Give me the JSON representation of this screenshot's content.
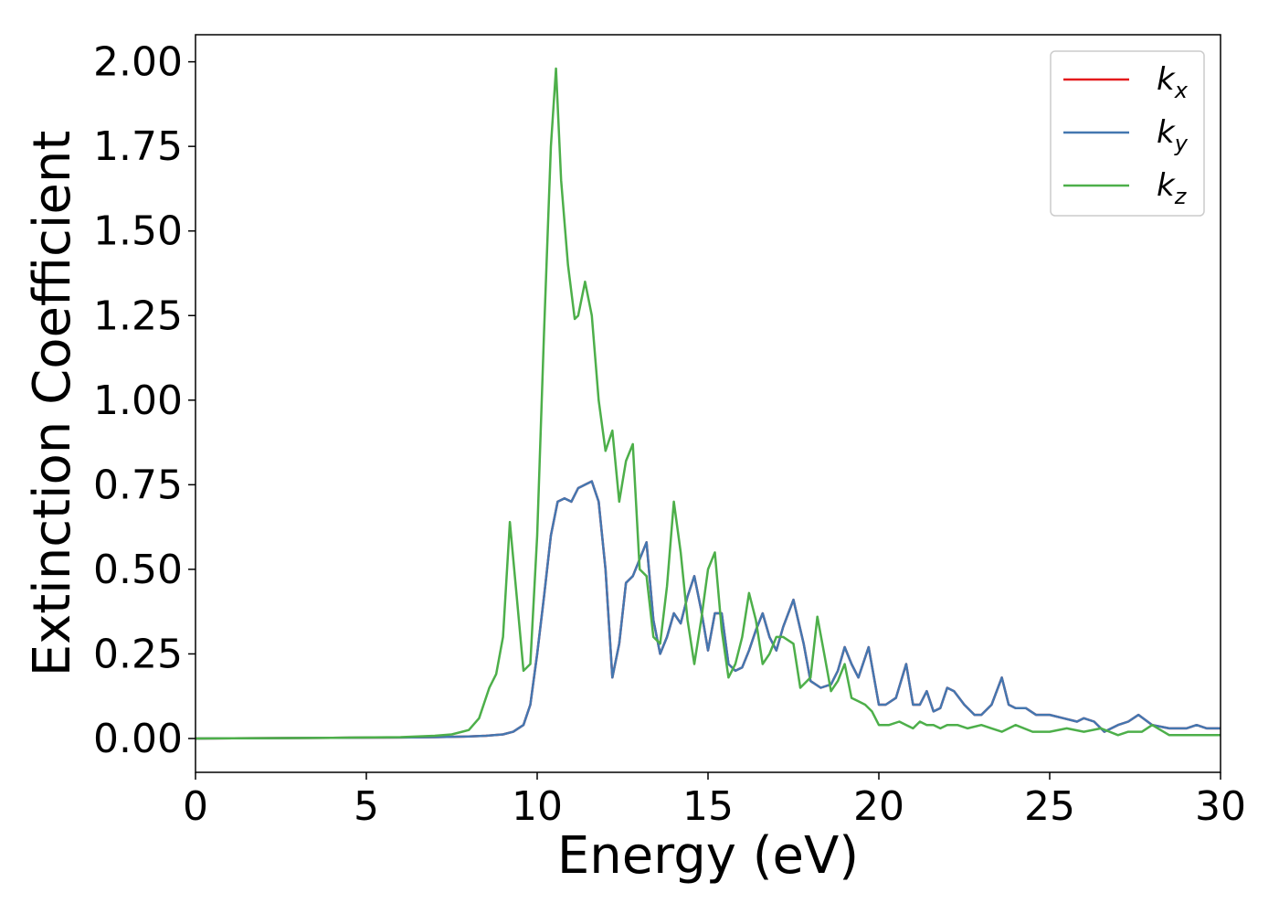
{
  "chart_data": {
    "type": "line",
    "xlabel": "Energy (eV)",
    "ylabel": "Extinction Coefficient",
    "xlim": [
      0,
      30
    ],
    "ylim": [
      -0.1,
      2.08
    ],
    "x_ticks": [
      0,
      5,
      10,
      15,
      20,
      25,
      30
    ],
    "x_tick_labels": [
      "0",
      "5",
      "10",
      "15",
      "20",
      "25",
      "30"
    ],
    "y_ticks": [
      0,
      0.25,
      0.5,
      0.75,
      1.0,
      1.25,
      1.5,
      1.75,
      2.0
    ],
    "y_tick_labels": [
      "0.00",
      "0.25",
      "0.50",
      "0.75",
      "1.00",
      "1.25",
      "1.50",
      "1.75",
      "2.00"
    ],
    "grid": false,
    "legend_position": "top-right",
    "series": [
      {
        "name": "kx",
        "label_main": "k",
        "label_sub": "x",
        "color": "#e41a1c",
        "x": [
          0,
          2,
          4,
          6,
          7,
          8,
          8.5,
          9,
          9.3,
          9.6,
          9.8,
          10,
          10.2,
          10.4,
          10.6,
          10.8,
          11,
          11.2,
          11.4,
          11.6,
          11.8,
          12,
          12.2,
          12.4,
          12.6,
          12.8,
          13,
          13.2,
          13.4,
          13.6,
          13.8,
          14,
          14.2,
          14.4,
          14.6,
          14.8,
          15,
          15.2,
          15.4,
          15.6,
          15.8,
          16,
          16.2,
          16.4,
          16.6,
          16.8,
          17,
          17.2,
          17.5,
          17.8,
          18,
          18.3,
          18.6,
          18.8,
          19,
          19.2,
          19.4,
          19.7,
          20,
          20.2,
          20.5,
          20.8,
          21,
          21.2,
          21.4,
          21.6,
          21.8,
          22,
          22.2,
          22.5,
          22.8,
          23,
          23.3,
          23.6,
          23.8,
          24,
          24.3,
          24.6,
          25,
          25.4,
          25.8,
          26,
          26.3,
          26.6,
          27,
          27.3,
          27.6,
          28,
          28.5,
          29,
          29.3,
          29.6,
          30
        ],
        "y": [
          0,
          0.001,
          0.002,
          0.003,
          0.004,
          0.006,
          0.008,
          0.012,
          0.02,
          0.04,
          0.1,
          0.25,
          0.42,
          0.6,
          0.7,
          0.71,
          0.7,
          0.74,
          0.75,
          0.76,
          0.7,
          0.5,
          0.18,
          0.28,
          0.46,
          0.48,
          0.53,
          0.58,
          0.35,
          0.25,
          0.3,
          0.37,
          0.34,
          0.42,
          0.48,
          0.38,
          0.26,
          0.37,
          0.37,
          0.22,
          0.2,
          0.21,
          0.26,
          0.32,
          0.37,
          0.3,
          0.26,
          0.33,
          0.41,
          0.28,
          0.17,
          0.15,
          0.16,
          0.2,
          0.27,
          0.22,
          0.18,
          0.27,
          0.1,
          0.1,
          0.12,
          0.22,
          0.1,
          0.1,
          0.14,
          0.08,
          0.09,
          0.15,
          0.14,
          0.1,
          0.07,
          0.07,
          0.1,
          0.18,
          0.1,
          0.09,
          0.09,
          0.07,
          0.07,
          0.06,
          0.05,
          0.06,
          0.05,
          0.02,
          0.04,
          0.05,
          0.07,
          0.04,
          0.03,
          0.03,
          0.04,
          0.03,
          0.03
        ]
      },
      {
        "name": "ky",
        "label_main": "k",
        "label_sub": "y",
        "color": "#4477b0",
        "x": [
          0,
          2,
          4,
          6,
          7,
          8,
          8.5,
          9,
          9.3,
          9.6,
          9.8,
          10,
          10.2,
          10.4,
          10.6,
          10.8,
          11,
          11.2,
          11.4,
          11.6,
          11.8,
          12,
          12.2,
          12.4,
          12.6,
          12.8,
          13,
          13.2,
          13.4,
          13.6,
          13.8,
          14,
          14.2,
          14.4,
          14.6,
          14.8,
          15,
          15.2,
          15.4,
          15.6,
          15.8,
          16,
          16.2,
          16.4,
          16.6,
          16.8,
          17,
          17.2,
          17.5,
          17.8,
          18,
          18.3,
          18.6,
          18.8,
          19,
          19.2,
          19.4,
          19.7,
          20,
          20.2,
          20.5,
          20.8,
          21,
          21.2,
          21.4,
          21.6,
          21.8,
          22,
          22.2,
          22.5,
          22.8,
          23,
          23.3,
          23.6,
          23.8,
          24,
          24.3,
          24.6,
          25,
          25.4,
          25.8,
          26,
          26.3,
          26.6,
          27,
          27.3,
          27.6,
          28,
          28.5,
          29,
          29.3,
          29.6,
          30
        ],
        "y": [
          0,
          0.001,
          0.002,
          0.003,
          0.004,
          0.006,
          0.008,
          0.012,
          0.02,
          0.04,
          0.1,
          0.25,
          0.42,
          0.6,
          0.7,
          0.71,
          0.7,
          0.74,
          0.75,
          0.76,
          0.7,
          0.5,
          0.18,
          0.28,
          0.46,
          0.48,
          0.53,
          0.58,
          0.35,
          0.25,
          0.3,
          0.37,
          0.34,
          0.42,
          0.48,
          0.38,
          0.26,
          0.37,
          0.37,
          0.22,
          0.2,
          0.21,
          0.26,
          0.32,
          0.37,
          0.3,
          0.26,
          0.33,
          0.41,
          0.28,
          0.17,
          0.15,
          0.16,
          0.2,
          0.27,
          0.22,
          0.18,
          0.27,
          0.1,
          0.1,
          0.12,
          0.22,
          0.1,
          0.1,
          0.14,
          0.08,
          0.09,
          0.15,
          0.14,
          0.1,
          0.07,
          0.07,
          0.1,
          0.18,
          0.1,
          0.09,
          0.09,
          0.07,
          0.07,
          0.06,
          0.05,
          0.06,
          0.05,
          0.02,
          0.04,
          0.05,
          0.07,
          0.04,
          0.03,
          0.03,
          0.04,
          0.03,
          0.03
        ]
      },
      {
        "name": "kz",
        "label_main": "k",
        "label_sub": "z",
        "color": "#4daf4a",
        "x": [
          0,
          2,
          4,
          6,
          7,
          7.5,
          8,
          8.3,
          8.6,
          8.8,
          9,
          9.2,
          9.4,
          9.6,
          9.8,
          10,
          10.2,
          10.4,
          10.55,
          10.7,
          10.9,
          11.1,
          11.2,
          11.4,
          11.6,
          11.8,
          12,
          12.2,
          12.4,
          12.6,
          12.8,
          13,
          13.2,
          13.4,
          13.6,
          13.8,
          14,
          14.2,
          14.4,
          14.6,
          14.8,
          15,
          15.2,
          15.4,
          15.6,
          15.8,
          16,
          16.2,
          16.4,
          16.6,
          16.8,
          17,
          17.2,
          17.5,
          17.7,
          18,
          18.2,
          18.4,
          18.6,
          18.8,
          19,
          19.2,
          19.4,
          19.6,
          19.8,
          20,
          20.3,
          20.6,
          20.8,
          21,
          21.2,
          21.4,
          21.6,
          21.8,
          22,
          22.3,
          22.6,
          23,
          23.3,
          23.6,
          24,
          24.5,
          25,
          25.5,
          26,
          26.5,
          27,
          27.3,
          27.7,
          28,
          28.5,
          29,
          29.5,
          30
        ],
        "y": [
          0,
          0.001,
          0.002,
          0.004,
          0.008,
          0.012,
          0.025,
          0.06,
          0.15,
          0.19,
          0.3,
          0.64,
          0.42,
          0.2,
          0.22,
          0.6,
          1.2,
          1.75,
          1.98,
          1.65,
          1.4,
          1.24,
          1.25,
          1.35,
          1.25,
          1.0,
          0.85,
          0.91,
          0.7,
          0.82,
          0.87,
          0.5,
          0.48,
          0.3,
          0.28,
          0.45,
          0.7,
          0.55,
          0.35,
          0.22,
          0.35,
          0.5,
          0.55,
          0.32,
          0.18,
          0.22,
          0.3,
          0.43,
          0.35,
          0.22,
          0.25,
          0.3,
          0.3,
          0.28,
          0.15,
          0.18,
          0.36,
          0.25,
          0.14,
          0.17,
          0.22,
          0.12,
          0.11,
          0.1,
          0.08,
          0.04,
          0.04,
          0.05,
          0.04,
          0.03,
          0.05,
          0.04,
          0.04,
          0.03,
          0.04,
          0.04,
          0.03,
          0.04,
          0.03,
          0.02,
          0.04,
          0.02,
          0.02,
          0.03,
          0.02,
          0.03,
          0.01,
          0.02,
          0.02,
          0.04,
          0.01,
          0.01,
          0.01,
          0.01
        ]
      }
    ]
  }
}
